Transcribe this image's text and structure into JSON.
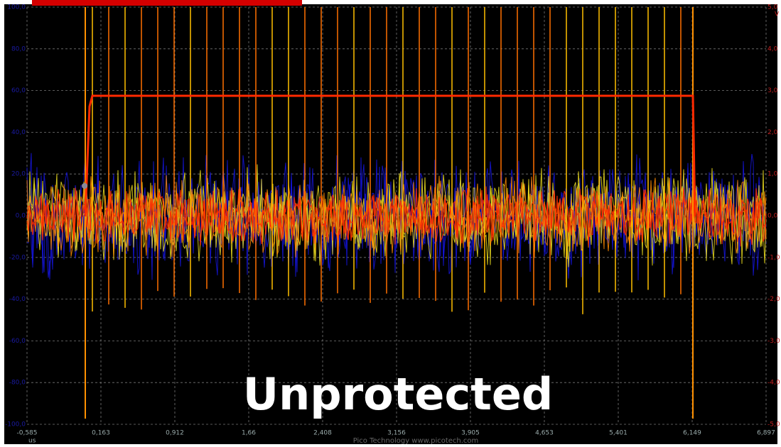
{
  "left_axis": {
    "labels": [
      "100,0",
      "80,0",
      "60,0",
      "40,0",
      "20,0",
      "0,0",
      "-20,0",
      "-40,0",
      "-60,0",
      "-80,0",
      "-100,0"
    ]
  },
  "right_axis": {
    "labels": [
      "5,0",
      "4,0",
      "3,0",
      "2,0",
      "1,0",
      "0,0",
      "-1,0",
      "-2,0",
      "-3,0",
      "-4,0",
      "-5,0"
    ],
    "unit": "V"
  },
  "x_axis": {
    "labels": [
      "-0,585",
      "0,163",
      "0,912",
      "1,66",
      "2,408",
      "3,156",
      "3,905",
      "4,653",
      "5,401",
      "6,149",
      "6,897"
    ],
    "unit": "us"
  },
  "overlay_text": "Unprotected",
  "footer": "Pico Technology   www.picotech.com"
}
